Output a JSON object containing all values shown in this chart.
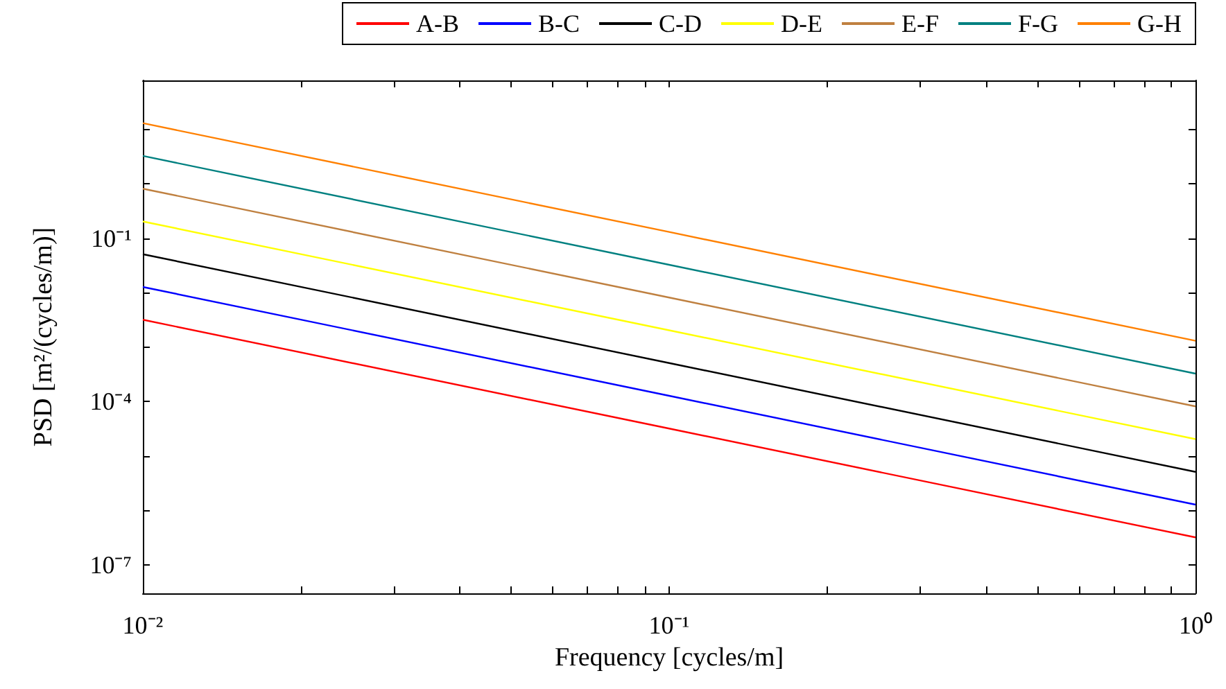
{
  "chart_data": {
    "type": "line",
    "xlabel": "Frequency [cycles/m]",
    "ylabel": "PSD [m²/(cycles/m)]",
    "log": "xy",
    "grid": false,
    "legend": "top",
    "marker": "none",
    "line_style": "solid",
    "x": [
      0.01,
      0.1,
      1
    ],
    "xlim": [
      0.01,
      1
    ],
    "xticks": [
      {
        "value": 0.01,
        "label": "10⁻²"
      },
      {
        "value": 0.02,
        "label": null
      },
      {
        "value": 0.03,
        "label": null
      },
      {
        "value": 0.04,
        "label": null
      },
      {
        "value": 0.05,
        "label": null
      },
      {
        "value": 0.06,
        "label": null
      },
      {
        "value": 0.07,
        "label": null
      },
      {
        "value": 0.08,
        "label": null
      },
      {
        "value": 0.09,
        "label": null
      },
      {
        "value": 0.1,
        "label": "10⁻¹"
      },
      {
        "value": 0.2,
        "label": null
      },
      {
        "value": 0.3,
        "label": null
      },
      {
        "value": 0.4,
        "label": null
      },
      {
        "value": 0.5,
        "label": null
      },
      {
        "value": 0.6,
        "label": null
      },
      {
        "value": 0.7,
        "label": null
      },
      {
        "value": 0.8,
        "label": null
      },
      {
        "value": 0.9,
        "label": null
      },
      {
        "value": 1,
        "label": "10⁰"
      }
    ],
    "ylim": [
      3e-08,
      80
    ],
    "yticks": [
      {
        "value": 1e-07,
        "label": "10⁻⁷"
      },
      {
        "value": 1e-06,
        "label": null
      },
      {
        "value": 1e-05,
        "label": null
      },
      {
        "value": 0.0001,
        "label": "10⁻⁴"
      },
      {
        "value": 0.001,
        "label": null
      },
      {
        "value": 0.01,
        "label": null
      },
      {
        "value": 0.1,
        "label": "10⁻¹"
      },
      {
        "value": 1,
        "label": null
      },
      {
        "value": 10,
        "label": null
      }
    ],
    "series": [
      {
        "name": "A-B",
        "color": "#ff0000",
        "values": [
          0.0032,
          3.2e-05,
          3.2e-07
        ]
      },
      {
        "name": "B-C",
        "color": "#0000ff",
        "values": [
          0.0128,
          0.000128,
          1.28e-06
        ]
      },
      {
        "name": "C-D",
        "color": "#000000",
        "values": [
          0.0512,
          0.000512,
          5.12e-06
        ]
      },
      {
        "name": "D-E",
        "color": "#ffff00",
        "values": [
          0.2048,
          0.002048,
          2.048e-05
        ]
      },
      {
        "name": "E-F",
        "color": "#bf8040",
        "values": [
          0.8192,
          0.008192,
          8.192e-05
        ]
      },
      {
        "name": "F-G",
        "color": "#008080",
        "values": [
          3.2768,
          0.032768,
          0.00032768
        ]
      },
      {
        "name": "G-H",
        "color": "#ff8000",
        "values": [
          13.1072,
          0.131072,
          0.00131072
        ]
      }
    ]
  }
}
